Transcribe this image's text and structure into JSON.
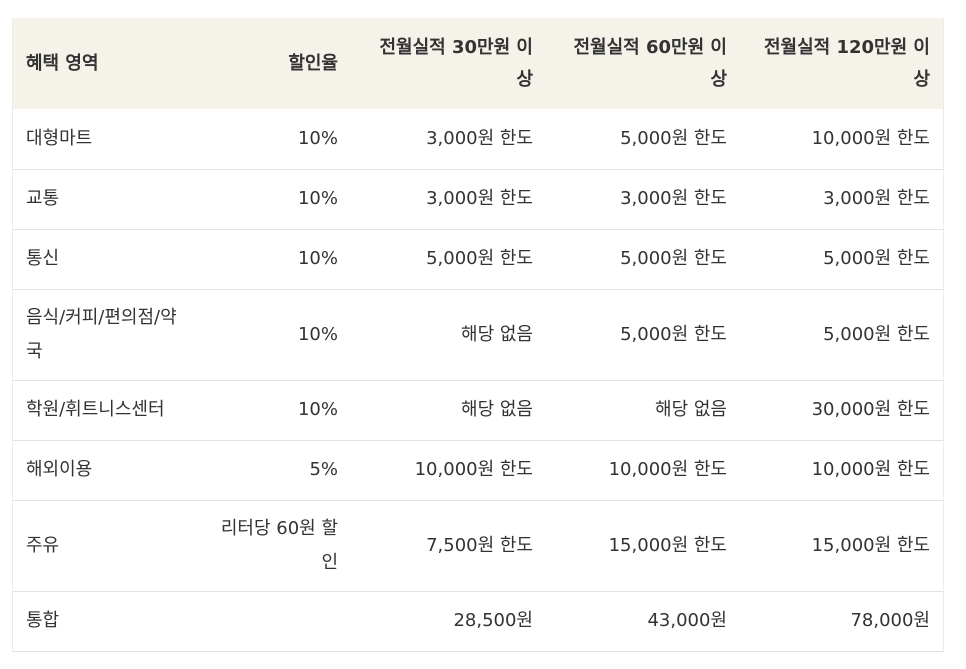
{
  "table": {
    "headers": [
      "혜택 영역",
      "할인율",
      "전월실적 30만원 이상",
      "전월실적 60만원 이상",
      "전월실적 120만원 이상"
    ],
    "rows": [
      [
        "대형마트",
        "10%",
        "3,000원 한도",
        "5,000원 한도",
        "10,000원 한도"
      ],
      [
        "교통",
        "10%",
        "3,000원 한도",
        "3,000원 한도",
        "3,000원 한도"
      ],
      [
        "통신",
        "10%",
        "5,000원 한도",
        "5,000원 한도",
        "5,000원 한도"
      ],
      [
        "음식/커피/편의점/약국",
        "10%",
        "해당 없음",
        "5,000원 한도",
        "5,000원 한도"
      ],
      [
        "학원/휘트니스센터",
        "10%",
        "해당 없음",
        "해당 없음",
        "30,000원 한도"
      ],
      [
        "해외이용",
        "5%",
        "10,000원 한도",
        "10,000원 한도",
        "10,000원 한도"
      ],
      [
        "주유",
        "리터당 60원 할인",
        "7,500원 한도",
        "15,000원 한도",
        "15,000원 한도"
      ],
      [
        "통합",
        "",
        "28,500원",
        "43,000원",
        "78,000원"
      ]
    ]
  }
}
